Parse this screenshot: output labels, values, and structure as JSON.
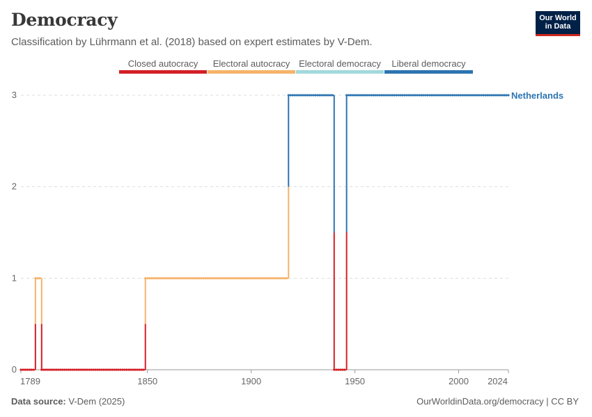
{
  "header": {
    "title": "Democracy",
    "subtitle": "Classification by Lührmann et al. (2018) based on expert estimates by V-Dem."
  },
  "logo": {
    "line1": "Our World",
    "line2": "in Data"
  },
  "footer": {
    "source_label": "Data source:",
    "source_value": "V-Dem (2025)",
    "link": "OurWorldinData.org/democracy | CC BY"
  },
  "colors": {
    "closed_autocracy": "#d31f26",
    "electoral_autocracy": "#f5b369",
    "electoral_democracy": "#a2d9dd",
    "liberal_democracy": "#2d74b1",
    "series_label": "#2d74b1"
  },
  "chart_data": {
    "type": "line",
    "title": "Democracy",
    "series_name": "Netherlands",
    "xlim": [
      1789,
      2024
    ],
    "ylim": [
      0,
      3
    ],
    "x_ticks": [
      "1789",
      "1850",
      "1900",
      "1950",
      "2000",
      "2024"
    ],
    "y_ticks": [
      "0",
      "1",
      "2",
      "3"
    ],
    "legend": [
      {
        "label": "Closed autocracy",
        "value": 0
      },
      {
        "label": "Electoral autocracy",
        "value": 1
      },
      {
        "label": "Electoral democracy",
        "value": 2
      },
      {
        "label": "Liberal democracy",
        "value": 3
      }
    ],
    "segments": [
      {
        "from": 1789,
        "to": 1795,
        "value": 0
      },
      {
        "from": 1796,
        "to": 1798,
        "value": 1
      },
      {
        "from": 1799,
        "to": 1848,
        "value": 0
      },
      {
        "from": 1849,
        "to": 1917,
        "value": 1
      },
      {
        "from": 1918,
        "to": 1939,
        "value": 3
      },
      {
        "from": 1940,
        "to": 1945,
        "value": 0
      },
      {
        "from": 1946,
        "to": 2024,
        "value": 3
      }
    ]
  }
}
